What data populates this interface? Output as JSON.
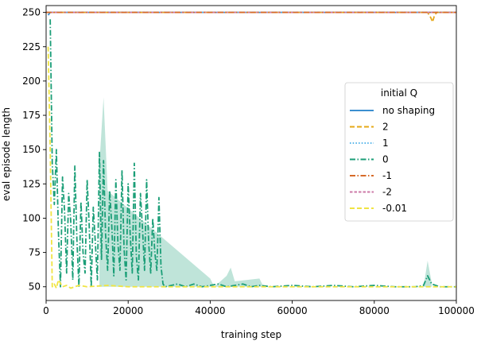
{
  "chart_data": {
    "type": "line",
    "title": "",
    "xlabel": "training step",
    "ylabel": "eval episode length",
    "xlim": [
      0,
      100000
    ],
    "ylim": [
      40,
      255
    ],
    "xticks": [
      0,
      20000,
      40000,
      60000,
      80000,
      100000
    ],
    "xtick_labels": [
      "0",
      "20000",
      "40000",
      "60000",
      "80000",
      "100000"
    ],
    "yticks": [
      50,
      75,
      100,
      125,
      150,
      175,
      200,
      225,
      250
    ],
    "ytick_labels": [
      "50",
      "75",
      "100",
      "125",
      "150",
      "175",
      "200",
      "225",
      "250"
    ],
    "grid": false,
    "legend": {
      "title": "initial Q",
      "placement": "center-right"
    },
    "series": [
      {
        "name": "no shaping",
        "color": "#3b8fd0",
        "dash": "solid",
        "x": [
          500,
          1000,
          100000
        ],
        "y": [
          248,
          250,
          250
        ]
      },
      {
        "name": "2",
        "color": "#e6a817",
        "dash": "dashed",
        "x": [
          0,
          93000,
          93800,
          94200,
          94600,
          95200,
          100000
        ],
        "y": [
          250,
          250,
          246,
          243,
          247,
          250,
          250
        ]
      },
      {
        "name": "1",
        "color": "#56b4e9",
        "dash": "dotted",
        "x": [
          0,
          100000
        ],
        "y": [
          250,
          250
        ]
      },
      {
        "name": "0",
        "color": "#1a9e77",
        "dash": "dashdot",
        "x": [
          1000,
          1500,
          2000,
          2500,
          3000,
          3500,
          4000,
          4500,
          5000,
          5500,
          6000,
          6500,
          7000,
          7500,
          8000,
          8500,
          9000,
          9500,
          10000,
          10500,
          11000,
          11500,
          12000,
          12500,
          13000,
          13500,
          14000,
          14500,
          15000,
          15500,
          16000,
          16500,
          17000,
          17500,
          18000,
          18500,
          19000,
          19500,
          20000,
          20500,
          21000,
          21500,
          22000,
          22500,
          23000,
          23500,
          24000,
          24500,
          25000,
          25500,
          26000,
          26500,
          27000,
          27500,
          28000,
          28500,
          29000,
          32000,
          34000,
          36000,
          38000,
          40000,
          42000,
          44000,
          46000,
          48000,
          50000,
          52000,
          55000,
          60000,
          65000,
          70000,
          75000,
          80000,
          85000,
          90000,
          92000,
          93000,
          94000,
          96000,
          100000
        ],
        "y": [
          245,
          140,
          110,
          150,
          90,
          50,
          130,
          105,
          60,
          118,
          98,
          55,
          138,
          85,
          50,
          112,
          75,
          60,
          128,
          95,
          50,
          108,
          82,
          55,
          148,
          70,
          142,
          88,
          62,
          120,
          95,
          58,
          128,
          82,
          62,
          135,
          78,
          55,
          125,
          88,
          60,
          140,
          72,
          55,
          118,
          92,
          62,
          128,
          82,
          60,
          100,
          75,
          62,
          115,
          65,
          52,
          50,
          52,
          50,
          52,
          50,
          51,
          52,
          50,
          51,
          52,
          50,
          51,
          50,
          51,
          50,
          51,
          50,
          51,
          50,
          50,
          51,
          58,
          52,
          50,
          50
        ]
      },
      {
        "name": "-1",
        "color": "#d66a28",
        "dash": "dashdot",
        "x": [
          0,
          100000
        ],
        "y": [
          250,
          250
        ]
      },
      {
        "name": "-2",
        "color": "#cc79a7",
        "dash": "dashed-fine",
        "x": [
          0,
          100000
        ],
        "y": [
          250,
          250
        ]
      },
      {
        "name": "-0.01",
        "color": "#f0e442",
        "dash": "dashed",
        "x": [
          500,
          1000,
          1500,
          2000,
          2500,
          3000,
          4000,
          5000,
          6000,
          8000,
          10000,
          15000,
          20000,
          30000,
          40000,
          50000,
          60000,
          70000,
          80000,
          90000,
          100000
        ],
        "y": [
          225,
          150,
          50,
          52,
          49,
          55,
          50,
          51,
          49,
          51,
          50,
          51,
          50,
          50,
          50,
          50,
          50,
          50,
          50,
          50,
          50
        ]
      }
    ],
    "bands": [
      {
        "series": "0",
        "color": "#1a9e77",
        "opacity": 0.28,
        "x": [
          13000,
          14000,
          15000,
          40000,
          41000,
          44000,
          45000,
          46000,
          52000,
          53000,
          92000,
          93000,
          94000
        ],
        "lower": [
          50,
          50,
          50,
          50,
          50,
          50,
          50,
          50,
          50,
          50,
          50,
          50,
          50
        ],
        "upper": [
          140,
          188,
          120,
          56,
          50,
          58,
          64,
          54,
          56,
          50,
          50,
          69,
          53
        ]
      }
    ]
  }
}
